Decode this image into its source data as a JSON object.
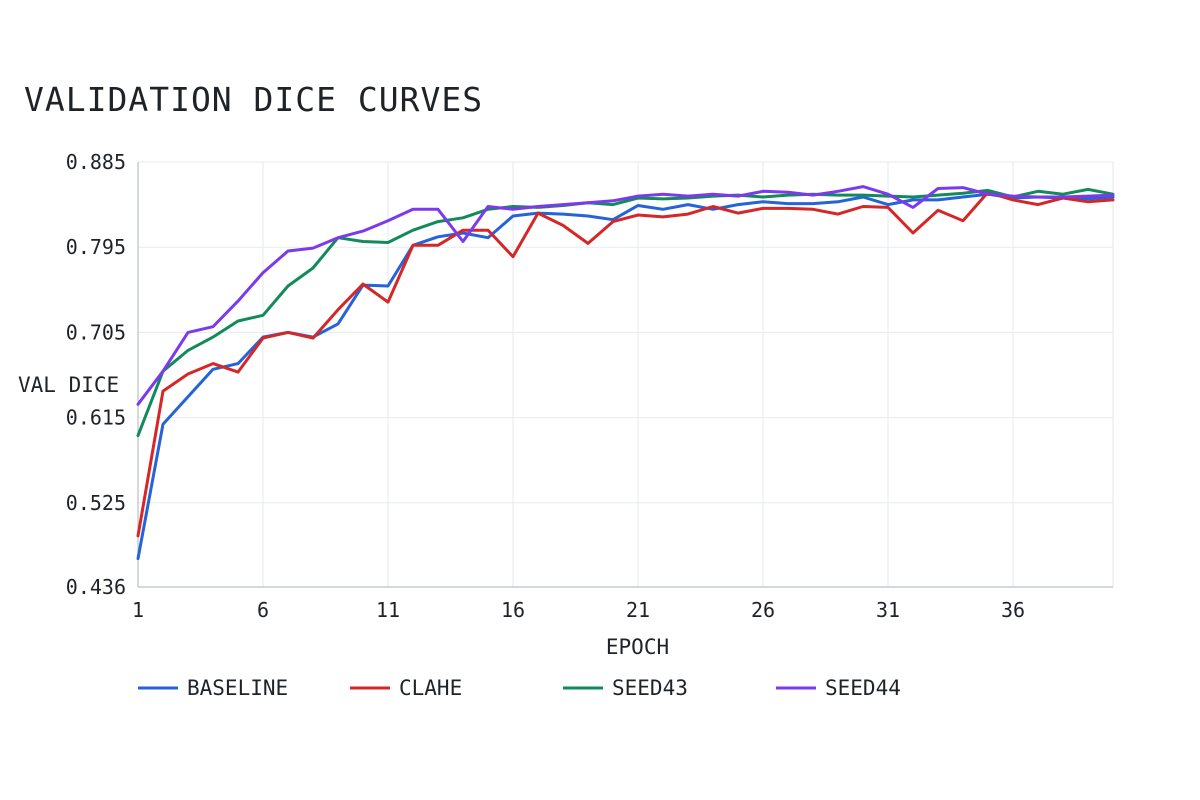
{
  "chart_data": {
    "type": "line",
    "title": "VALIDATION DICE CURVES",
    "xlabel": "EPOCH",
    "ylabel": "VAL DICE",
    "xlim": [
      1,
      40
    ],
    "ylim": [
      0.436,
      0.885
    ],
    "x_ticks": [
      1,
      6,
      11,
      16,
      21,
      26,
      31,
      36
    ],
    "y_ticks": [
      0.436,
      0.525,
      0.615,
      0.705,
      0.795,
      0.885
    ],
    "y_tick_labels": [
      "0.436",
      "0.525",
      "0.615",
      "0.705",
      "0.795",
      "0.885"
    ],
    "grid": true,
    "legend_position": "bottom",
    "x": [
      1,
      2,
      3,
      4,
      5,
      6,
      7,
      8,
      9,
      10,
      11,
      12,
      13,
      14,
      15,
      16,
      17,
      18,
      19,
      20,
      21,
      22,
      23,
      24,
      25,
      26,
      27,
      28,
      29,
      30,
      31,
      32,
      33,
      34,
      35,
      36,
      37,
      38,
      39,
      40
    ],
    "series": [
      {
        "name": "BASELINE",
        "color": "#2563d9",
        "values": [
          0.466,
          0.608,
          0.637,
          0.666,
          0.672,
          0.7,
          0.705,
          0.7,
          0.714,
          0.755,
          0.754,
          0.797,
          0.806,
          0.81,
          0.805,
          0.828,
          0.831,
          0.83,
          0.828,
          0.824,
          0.839,
          0.835,
          0.84,
          0.835,
          0.84,
          0.843,
          0.841,
          0.841,
          0.843,
          0.848,
          0.84,
          0.845,
          0.845,
          0.848,
          0.851,
          0.847,
          0.848,
          0.847,
          0.846,
          0.848
        ]
      },
      {
        "name": "CLAHE",
        "color": "#d62728",
        "values": [
          0.49,
          0.643,
          0.661,
          0.672,
          0.663,
          0.699,
          0.705,
          0.699,
          0.729,
          0.756,
          0.737,
          0.797,
          0.797,
          0.813,
          0.813,
          0.785,
          0.831,
          0.818,
          0.799,
          0.822,
          0.829,
          0.827,
          0.83,
          0.838,
          0.831,
          0.836,
          0.836,
          0.835,
          0.83,
          0.838,
          0.837,
          0.81,
          0.834,
          0.823,
          0.853,
          0.845,
          0.84,
          0.847,
          0.843,
          0.845
        ]
      },
      {
        "name": "SEED43",
        "color": "#138a5a",
        "values": [
          0.596,
          0.664,
          0.686,
          0.7,
          0.717,
          0.723,
          0.754,
          0.773,
          0.805,
          0.801,
          0.8,
          0.813,
          0.822,
          0.826,
          0.835,
          0.838,
          0.837,
          0.839,
          0.842,
          0.84,
          0.847,
          0.846,
          0.847,
          0.849,
          0.85,
          0.848,
          0.85,
          0.851,
          0.85,
          0.85,
          0.849,
          0.848,
          0.85,
          0.852,
          0.855,
          0.848,
          0.854,
          0.851,
          0.856,
          0.851
        ]
      },
      {
        "name": "SEED44",
        "color": "#7c3aed",
        "values": [
          0.629,
          0.664,
          0.705,
          0.711,
          0.738,
          0.768,
          0.791,
          0.794,
          0.805,
          0.812,
          0.823,
          0.835,
          0.835,
          0.801,
          0.838,
          0.835,
          0.838,
          0.84,
          0.842,
          0.844,
          0.849,
          0.851,
          0.849,
          0.851,
          0.849,
          0.854,
          0.853,
          0.85,
          0.854,
          0.859,
          0.851,
          0.837,
          0.857,
          0.858,
          0.851,
          0.849,
          0.848,
          0.848,
          0.849,
          0.85
        ]
      }
    ]
  }
}
